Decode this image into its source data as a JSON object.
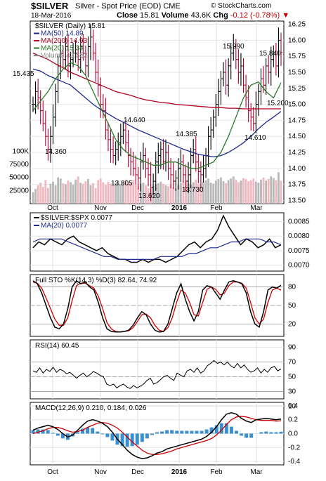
{
  "header": {
    "symbol": "$SILVER",
    "description": "Silver - Spot Price (EOD)",
    "exchange": "CME",
    "copyright": "© StockCharts.com",
    "date": "18-Mar-2016",
    "close_label": "Close",
    "close_value": "15.81",
    "volume_label": "Volume",
    "volume_value": "43.6K",
    "chg_label": "Chg",
    "chg_value": "-0.12 (-0.78%)",
    "chg_arrow": "▼"
  },
  "colors": {
    "up": "#000000",
    "down": "#b00030",
    "ma50": "#1e2a8c",
    "ma200": "#b00020",
    "ma20": "#2a7a2a",
    "volume_up": "#b8b8b8",
    "volume_down": "#f0b8c0",
    "ratio_line": "#000000",
    "ratio_ma": "#1e2a8c",
    "stoch_k": "#000000",
    "stoch_d": "#cc0000",
    "rsi": "#000000",
    "macd": "#000000",
    "macd_signal": "#cc0000",
    "histogram": "#3a8fd0"
  },
  "chart_data": [
    {
      "type": "line",
      "panel": "price",
      "legend": [
        "$SILVER (Daily) 15.81",
        "MA(50) 14.89",
        "MA(200) 14.93",
        "MA(20) 15.34",
        "Volume 43,552"
      ],
      "ylim": [
        13.45,
        16.3
      ],
      "yticks": [
        "16.25",
        "16.00",
        "15.75",
        "15.50",
        "15.25",
        "15.00",
        "14.75",
        "14.50",
        "14.25",
        "14.00",
        "13.75",
        "13.50"
      ],
      "volume_ticks": [
        "100K",
        "75000",
        "50000",
        "25000"
      ],
      "x_labels": [
        "Oct",
        "Nov",
        "Dec",
        "2016",
        "Feb",
        "Mar"
      ],
      "annotations": [
        {
          "label": "15.435",
          "value": 15.435
        },
        {
          "label": "14.360",
          "value": 14.36
        },
        {
          "label": "14.640",
          "value": 14.64
        },
        {
          "label": "13.805",
          "value": 13.805
        },
        {
          "label": "13.620",
          "value": 13.62
        },
        {
          "label": "14.385",
          "value": 14.385
        },
        {
          "label": "13.730",
          "value": 13.73
        },
        {
          "label": "15.990",
          "value": 15.99
        },
        {
          "label": "15.840",
          "value": 15.84
        },
        {
          "label": "15.200",
          "value": 15.2
        },
        {
          "label": "14.610",
          "value": 14.61
        }
      ],
      "close": [
        15.0,
        15.2,
        15.1,
        14.9,
        14.7,
        14.5,
        14.3,
        14.5,
        14.8,
        15.2,
        15.6,
        15.8,
        15.7,
        15.9,
        15.6,
        15.7,
        15.8,
        15.8,
        15.7,
        15.9,
        15.8,
        15.6,
        15.9,
        16.05,
        15.8,
        15.5,
        15.3,
        15.0,
        14.9,
        14.6,
        14.45,
        14.3,
        14.2,
        14.3,
        14.4,
        14.5,
        14.6,
        14.4,
        14.2,
        14.1,
        14.0,
        13.9,
        13.85,
        14.1,
        14.2,
        14.0,
        13.9,
        13.7,
        13.8,
        14.1,
        14.2,
        14.3,
        14.1,
        14.25,
        14.0,
        13.9,
        13.8,
        13.85,
        14.0,
        14.1,
        13.9,
        13.8,
        13.9,
        14.2,
        14.3,
        14.1,
        13.95,
        13.9,
        14.0,
        14.2,
        14.5,
        14.6,
        14.8,
        15.0,
        15.2,
        15.4,
        15.5,
        15.3,
        15.6,
        15.8,
        15.9,
        15.7,
        15.5,
        15.6,
        15.3,
        15.1,
        14.9,
        14.8,
        14.7,
        15.0,
        15.2,
        15.4,
        15.3,
        15.6,
        15.5,
        15.7,
        15.8,
        15.6,
        16.0,
        15.81
      ],
      "series": [
        {
          "name": "MA(50)",
          "values": [
            15.55,
            15.52,
            15.45,
            15.4,
            15.35,
            15.3,
            15.2,
            15.1,
            15.0,
            14.92,
            14.85,
            14.78,
            14.72,
            14.66,
            14.6,
            14.55,
            14.5,
            14.45,
            14.4,
            14.35,
            14.3,
            14.26,
            14.22,
            14.2,
            14.18,
            14.2,
            14.25,
            14.32,
            14.4,
            14.5,
            14.62,
            14.72,
            14.8,
            14.89
          ]
        },
        {
          "name": "MA(200)",
          "values": [
            15.8,
            15.75,
            15.7,
            15.63,
            15.57,
            15.5,
            15.45,
            15.4,
            15.35,
            15.3,
            15.25,
            15.2,
            15.17,
            15.14,
            15.1,
            15.07,
            15.05,
            15.03,
            15.02,
            15.0,
            14.99,
            14.98,
            14.97,
            14.96,
            14.95,
            14.95,
            14.94,
            14.94,
            14.93,
            14.93,
            14.93,
            14.93,
            14.93,
            14.93
          ]
        },
        {
          "name": "MA(20)",
          "values": [
            14.9,
            15.05,
            15.2,
            15.4,
            15.55,
            15.65,
            15.6,
            15.45,
            15.2,
            14.95,
            14.7,
            14.45,
            14.3,
            14.2,
            14.15,
            14.1,
            14.05,
            14.05,
            14.1,
            14.1,
            14.05,
            14.0,
            14.0,
            14.05,
            14.1,
            14.25,
            14.5,
            14.8,
            15.1,
            15.3,
            15.35,
            15.2,
            15.1,
            15.34
          ]
        }
      ],
      "volume": [
        22000,
        28000,
        35000,
        40000,
        32000,
        45000,
        30000,
        38000,
        42000,
        35000,
        50000,
        48000,
        39000,
        37000,
        44000,
        41000,
        36000,
        46000,
        52000,
        40000,
        38000,
        43000,
        47000,
        35000,
        39000,
        30000,
        45000,
        48000,
        41000,
        36000,
        42000,
        38000,
        35000,
        40000,
        44000,
        37000,
        42000,
        46000,
        39000,
        41000,
        45000,
        36000,
        33000,
        38000,
        40000,
        35000,
        30000,
        28000,
        34000,
        36000,
        39000,
        42000,
        38000,
        35000,
        33000,
        37000,
        31000,
        29000,
        35000,
        40000,
        42000,
        44000,
        39000,
        36000,
        41000,
        46000,
        38000,
        35000,
        42000,
        45000,
        48000,
        40000,
        38000,
        44000,
        47000,
        50000,
        43000,
        39000,
        45000,
        48000,
        52000,
        46000,
        41000,
        44000,
        49000,
        47000,
        43000,
        45000,
        48000,
        42000,
        40000,
        46000,
        50000,
        44000,
        47000,
        52000,
        49000,
        45000,
        60000,
        43552
      ]
    },
    {
      "type": "line",
      "panel": "ratio",
      "legend": [
        "$SILVER:$SPX 0.0077",
        "MA(20) 0.0077"
      ],
      "ylim": [
        0.0068,
        0.0088
      ],
      "yticks": [
        "0.0085",
        "0.0080",
        "0.0075",
        "0.0070"
      ],
      "series": [
        {
          "name": "$SILVER:$SPX",
          "values": [
            0.0076,
            0.0078,
            0.0077,
            0.0079,
            0.0078,
            0.0077,
            0.0079,
            0.008,
            0.0078,
            0.0077,
            0.0076,
            0.0075,
            0.0076,
            0.0074,
            0.0073,
            0.0072,
            0.0072,
            0.0071,
            0.0071,
            0.0072,
            0.0071,
            0.0072,
            0.0072,
            0.0071,
            0.0072,
            0.0073,
            0.0075,
            0.0077,
            0.0078,
            0.0076,
            0.0078,
            0.0079,
            0.0082,
            0.0087,
            0.0083,
            0.008,
            0.0077,
            0.0079,
            0.0078,
            0.0076,
            0.0077,
            0.0079,
            0.0076,
            0.0077
          ]
        },
        {
          "name": "MA(20)",
          "values": [
            0.0078,
            0.0079,
            0.0079,
            0.0079,
            0.0079,
            0.0078,
            0.0077,
            0.0076,
            0.0075,
            0.0074,
            0.0073,
            0.0073,
            0.0072,
            0.0072,
            0.0072,
            0.0072,
            0.0072,
            0.0072,
            0.0073,
            0.0073,
            0.0073,
            0.0073,
            0.0074,
            0.0074,
            0.0075,
            0.0076,
            0.0076,
            0.0077,
            0.0078,
            0.0078,
            0.0079,
            0.0079,
            0.0079,
            0.0078,
            0.0078,
            0.0077
          ]
        }
      ]
    },
    {
      "type": "line",
      "panel": "stochastic",
      "legend": [
        "Full STO %K(14,3) %D(3) 82.64, 74.92"
      ],
      "ylim": [
        0,
        100
      ],
      "yticks": [
        "80",
        "50",
        "20"
      ],
      "series": [
        {
          "name": "%K",
          "values": [
            90,
            85,
            70,
            50,
            30,
            15,
            12,
            20,
            45,
            80,
            90,
            85,
            88,
            80,
            75,
            55,
            30,
            12,
            8,
            7,
            7,
            8,
            10,
            18,
            30,
            40,
            35,
            20,
            10,
            7,
            8,
            20,
            45,
            70,
            85,
            60,
            40,
            25,
            40,
            75,
            82,
            80,
            70,
            60,
            75,
            88,
            90,
            88,
            85,
            70,
            40,
            20,
            15,
            40,
            75,
            80,
            78,
            82.64
          ]
        },
        {
          "name": "%D",
          "values": [
            88,
            86,
            78,
            62,
            45,
            28,
            18,
            18,
            30,
            58,
            82,
            86,
            86,
            82,
            78,
            65,
            45,
            22,
            12,
            8,
            7,
            8,
            9,
            14,
            24,
            35,
            36,
            30,
            18,
            10,
            8,
            14,
            30,
            55,
            75,
            70,
            55,
            35,
            33,
            55,
            76,
            80,
            76,
            67,
            70,
            82,
            88,
            88,
            86,
            78,
            55,
            30,
            20,
            28,
            55,
            75,
            78,
            74.92
          ]
        }
      ]
    },
    {
      "type": "line",
      "panel": "rsi",
      "legend": [
        "RSI(14) 60.45"
      ],
      "ylim": [
        20,
        100
      ],
      "yticks": [
        "90",
        "70",
        "50",
        "30",
        "10"
      ],
      "series": [
        {
          "name": "RSI(14)",
          "values": [
            58,
            56,
            62,
            55,
            60,
            57,
            63,
            56,
            60,
            58,
            54,
            56,
            52,
            48,
            52,
            55,
            50,
            53,
            57,
            55,
            52,
            50,
            40,
            38,
            40,
            35,
            38,
            40,
            36,
            34,
            38,
            35,
            37,
            40,
            45,
            48,
            40,
            42,
            46,
            50,
            52,
            48,
            45,
            55,
            52,
            50,
            58,
            60,
            56,
            62,
            55,
            58,
            65,
            68,
            72,
            68,
            70,
            66,
            70,
            65,
            62,
            68,
            62,
            66,
            60,
            56,
            58,
            62,
            55,
            60,
            56,
            62,
            64,
            58,
            60.45
          ]
        }
      ]
    },
    {
      "type": "line",
      "panel": "macd",
      "legend": [
        "MACD(12,26,9) 0.210, 0.184, 0.026"
      ],
      "ylim": [
        -0.45,
        0.45
      ],
      "yticks": [
        "0.4",
        "0.2",
        "0.0",
        "-0.2",
        "-0.4"
      ],
      "x_labels": [
        "Oct",
        "Nov",
        "Dec",
        "2016",
        "Feb",
        "Mar"
      ],
      "series": [
        {
          "name": "MACD",
          "values": [
            0.05,
            0.08,
            0.1,
            0.12,
            0.1,
            0.06,
            0.0,
            -0.05,
            -0.02,
            0.05,
            0.12,
            0.18,
            0.2,
            0.18,
            0.15,
            0.1,
            0.02,
            -0.08,
            -0.16,
            -0.24,
            -0.3,
            -0.34,
            -0.36,
            -0.35,
            -0.32,
            -0.28,
            -0.26,
            -0.22,
            -0.2,
            -0.18,
            -0.16,
            -0.14,
            -0.12,
            -0.1,
            -0.08,
            -0.04,
            0.02,
            0.1,
            0.2,
            0.28,
            0.3,
            0.28,
            0.22,
            0.18,
            0.16,
            0.2,
            0.21,
            0.22,
            0.21,
            0.2,
            0.21
          ]
        },
        {
          "name": "Signal",
          "values": [
            0.0,
            0.02,
            0.04,
            0.07,
            0.09,
            0.09,
            0.07,
            0.04,
            0.02,
            0.03,
            0.05,
            0.09,
            0.12,
            0.15,
            0.16,
            0.15,
            0.12,
            0.08,
            0.02,
            -0.05,
            -0.12,
            -0.18,
            -0.24,
            -0.28,
            -0.3,
            -0.3,
            -0.29,
            -0.27,
            -0.25,
            -0.22,
            -0.2,
            -0.18,
            -0.16,
            -0.14,
            -0.12,
            -0.1,
            -0.07,
            -0.02,
            0.05,
            0.13,
            0.2,
            0.24,
            0.25,
            0.24,
            0.22,
            0.2,
            0.19,
            0.19,
            0.19,
            0.18,
            0.184
          ]
        },
        {
          "name": "Histogram",
          "values": [
            0.05,
            0.06,
            0.06,
            0.05,
            0.01,
            -0.03,
            -0.07,
            -0.09,
            -0.04,
            0.02,
            0.07,
            0.09,
            0.08,
            0.03,
            -0.01,
            -0.05,
            -0.1,
            -0.16,
            -0.18,
            -0.19,
            -0.18,
            -0.16,
            -0.12,
            -0.07,
            -0.02,
            0.02,
            0.03,
            0.05,
            0.05,
            0.04,
            0.04,
            0.04,
            0.04,
            0.04,
            0.04,
            0.06,
            0.09,
            0.12,
            0.15,
            0.15,
            0.1,
            0.04,
            -0.03,
            -0.06,
            -0.06,
            0.0,
            0.02,
            0.03,
            0.02,
            0.02,
            0.026
          ]
        }
      ]
    }
  ]
}
